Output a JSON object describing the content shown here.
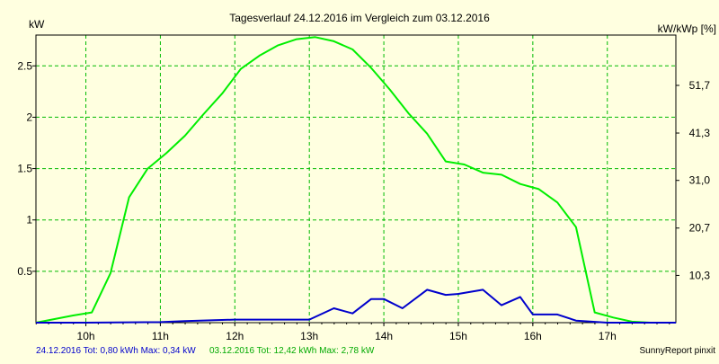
{
  "chart_data": {
    "type": "line",
    "title": "Tagesverlauf 24.12.2016 im Vergleich zum 03.12.2016",
    "ylabel_left": "kW",
    "ylabel_right": "kW/kWp [%]",
    "x_tick_labels": [
      "10h",
      "11h",
      "12h",
      "13h",
      "14h",
      "15h",
      "16h",
      "17h"
    ],
    "x_ticks": [
      10,
      11,
      12,
      13,
      14,
      15,
      16,
      17
    ],
    "xlim": [
      9.33,
      17.92
    ],
    "ylim": [
      0,
      2.8
    ],
    "y_ticks_left": [
      0.5,
      1,
      1.5,
      2,
      2.5
    ],
    "y_tick_labels_left": [
      "0.5",
      "1",
      "1.5",
      "2",
      "2.5"
    ],
    "y_ticks_right": [
      0.46,
      0.921,
      1.385,
      1.846,
      2.31
    ],
    "y_tick_labels_right": [
      "10,3",
      "20,7",
      "31,0",
      "41,3",
      "51,7"
    ],
    "grid": true,
    "series": [
      {
        "name": "24.12.2016",
        "color": "#0000cc",
        "x": [
          9.33,
          10.0,
          11.0,
          11.33,
          12.0,
          12.17,
          12.67,
          13.0,
          13.33,
          13.58,
          13.83,
          14.0,
          14.25,
          14.58,
          14.83,
          15.0,
          15.33,
          15.58,
          15.83,
          16.0,
          16.33,
          16.58,
          17.0,
          17.92
        ],
        "y": [
          0,
          0,
          0.005,
          0.015,
          0.03,
          0.03,
          0.03,
          0.03,
          0.14,
          0.09,
          0.23,
          0.23,
          0.14,
          0.32,
          0.27,
          0.28,
          0.32,
          0.17,
          0.25,
          0.08,
          0.08,
          0.02,
          0,
          0
        ]
      },
      {
        "name": "03.12.2016",
        "color": "#00ee00",
        "x": [
          9.33,
          9.83,
          10.08,
          10.33,
          10.58,
          10.83,
          11.08,
          11.33,
          11.58,
          11.83,
          12.08,
          12.33,
          12.58,
          12.83,
          13.08,
          13.33,
          13.58,
          13.83,
          14.08,
          14.33,
          14.58,
          14.83,
          15.08,
          15.33,
          15.58,
          15.83,
          16.08,
          16.33,
          16.58,
          16.83,
          17.08,
          17.33,
          17.58,
          17.92
        ],
        "y": [
          0,
          0.07,
          0.1,
          0.48,
          1.22,
          1.5,
          1.65,
          1.82,
          2.03,
          2.23,
          2.47,
          2.6,
          2.7,
          2.76,
          2.78,
          2.74,
          2.66,
          2.48,
          2.27,
          2.04,
          1.84,
          1.57,
          1.54,
          1.46,
          1.44,
          1.35,
          1.3,
          1.17,
          0.93,
          0.1,
          0.05,
          0.01,
          0,
          0
        ]
      }
    ],
    "footer": {
      "blue_text": "24.12.2016 Tot: 0,80 kWh Max: 0,34 kW",
      "green_text": "03.12.2016 Tot: 12,42 kWh Max: 2,78 kW",
      "credit": "SunnyReport pinxit"
    },
    "colors": {
      "background": "#ffffe0",
      "grid": "#00bb00",
      "axis": "#000000"
    }
  }
}
